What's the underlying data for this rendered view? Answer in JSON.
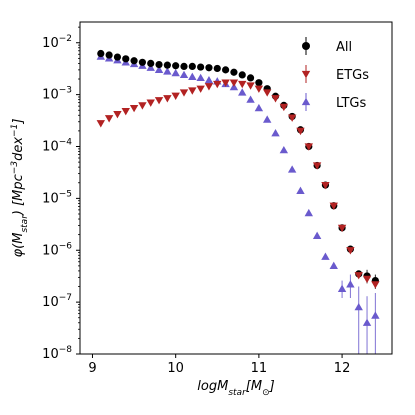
{
  "chart_data": {
    "type": "scatter",
    "xlabel_base": "logM",
    "xlabel_sub": "star",
    "xlabel_unit_open": "[M",
    "xlabel_unit_sub": "⊙",
    "xlabel_unit_close": "]",
    "ylabel_pre": "φ(M",
    "ylabel_sub": "star",
    "ylabel_post": ") [Mpc",
    "ylabel_sup1": "−3",
    "ylabel_mid": "dex",
    "ylabel_sup2": "−1",
    "ylabel_end": "]",
    "xlim": [
      8.85,
      12.6
    ],
    "ylim_log10": [
      -8,
      -1.6
    ],
    "y_scale": "log",
    "legend_position": "top-right",
    "x_ticks": [
      9,
      10,
      11,
      12
    ],
    "y_ticks": [
      {
        "exp": -8,
        "label": "10",
        "sup": "−8"
      },
      {
        "exp": -7,
        "label": "10",
        "sup": "−7"
      },
      {
        "exp": -6,
        "label": "10",
        "sup": "−6"
      },
      {
        "exp": -5,
        "label": "10",
        "sup": "−5"
      },
      {
        "exp": -4,
        "label": "10",
        "sup": "−4"
      },
      {
        "exp": -3,
        "label": "10",
        "sup": "−3"
      },
      {
        "exp": -2,
        "label": "10",
        "sup": "−2"
      }
    ],
    "series": [
      {
        "name": "All",
        "marker": "circle",
        "color": "#000000",
        "points": [
          [
            9.1,
            0.0062
          ],
          [
            9.2,
            0.0058
          ],
          [
            9.3,
            0.0053
          ],
          [
            9.4,
            0.0049
          ],
          [
            9.5,
            0.0045
          ],
          [
            9.6,
            0.0042
          ],
          [
            9.7,
            0.004
          ],
          [
            9.8,
            0.0038
          ],
          [
            9.9,
            0.0037
          ],
          [
            10.0,
            0.0036
          ],
          [
            10.1,
            0.0035
          ],
          [
            10.2,
            0.0035
          ],
          [
            10.3,
            0.0034
          ],
          [
            10.4,
            0.0033
          ],
          [
            10.5,
            0.0032
          ],
          [
            10.6,
            0.003
          ],
          [
            10.7,
            0.0027
          ],
          [
            10.8,
            0.0024
          ],
          [
            10.9,
            0.0021
          ],
          [
            11.0,
            0.0017
          ],
          [
            11.1,
            0.0013
          ],
          [
            11.2,
            0.00093
          ],
          [
            11.3,
            0.00062
          ],
          [
            11.4,
            0.00038
          ],
          [
            11.5,
            0.00021
          ],
          [
            11.6,
            0.0001
          ],
          [
            11.7,
            4.3e-05
          ],
          [
            11.8,
            1.8e-05
          ],
          [
            11.9,
            7.2e-06
          ],
          [
            12.0,
            2.7e-06
          ],
          [
            12.1,
            1.05e-06
          ],
          [
            12.2,
            3.5e-07
          ],
          [
            12.3,
            3.2e-07
          ],
          [
            12.4,
            2.6e-07
          ]
        ]
      },
      {
        "name": "ETGs",
        "marker": "triangle-down",
        "color": "#b22222",
        "points": [
          [
            9.1,
            0.00028
          ],
          [
            9.2,
            0.00035
          ],
          [
            9.3,
            0.00042
          ],
          [
            9.4,
            0.00048
          ],
          [
            9.5,
            0.00055
          ],
          [
            9.6,
            0.00062
          ],
          [
            9.7,
            0.0007
          ],
          [
            9.8,
            0.00078
          ],
          [
            9.9,
            0.00085
          ],
          [
            10.0,
            0.00095
          ],
          [
            10.1,
            0.0011
          ],
          [
            10.2,
            0.0012
          ],
          [
            10.3,
            0.0013
          ],
          [
            10.4,
            0.00145
          ],
          [
            10.5,
            0.0016
          ],
          [
            10.6,
            0.0017
          ],
          [
            10.7,
            0.0017
          ],
          [
            10.8,
            0.0016
          ],
          [
            10.9,
            0.0015
          ],
          [
            11.0,
            0.0013
          ],
          [
            11.1,
            0.0011
          ],
          [
            11.2,
            0.00085
          ],
          [
            11.3,
            0.00058
          ],
          [
            11.4,
            0.00036
          ],
          [
            11.5,
            0.0002
          ],
          [
            11.6,
            0.0001
          ],
          [
            11.7,
            4.3e-05
          ],
          [
            11.8,
            1.8e-05
          ],
          [
            11.9,
            7.2e-06
          ],
          [
            12.0,
            2.7e-06
          ],
          [
            12.1,
            1e-06
          ],
          [
            12.2,
            3.3e-07
          ],
          [
            12.3,
            2.8e-07
          ],
          [
            12.4,
            2.2e-07
          ]
        ]
      },
      {
        "name": "LTGs",
        "marker": "triangle-up",
        "color": "#6a5acd",
        "points": [
          [
            9.1,
            0.0054
          ],
          [
            9.2,
            0.005
          ],
          [
            9.3,
            0.0046
          ],
          [
            9.4,
            0.0042
          ],
          [
            9.5,
            0.0039
          ],
          [
            9.6,
            0.0036
          ],
          [
            9.7,
            0.0033
          ],
          [
            9.8,
            0.003
          ],
          [
            9.9,
            0.0028
          ],
          [
            10.0,
            0.0026
          ],
          [
            10.1,
            0.0024
          ],
          [
            10.2,
            0.0022
          ],
          [
            10.3,
            0.0021
          ],
          [
            10.4,
            0.0019
          ],
          [
            10.5,
            0.0018
          ],
          [
            10.6,
            0.0016
          ],
          [
            10.7,
            0.0014
          ],
          [
            10.8,
            0.0011
          ],
          [
            10.9,
            0.0008
          ],
          [
            11.0,
            0.00055
          ],
          [
            11.1,
            0.00033
          ],
          [
            11.2,
            0.00018
          ],
          [
            11.3,
            8.5e-05
          ],
          [
            11.4,
            3.6e-05
          ],
          [
            11.5,
            1.4e-05
          ],
          [
            11.6,
            5.2e-06
          ],
          [
            11.7,
            1.9e-06
          ],
          [
            11.8,
            7.5e-07
          ],
          [
            11.9,
            5e-07
          ],
          [
            12.0,
            1.8e-07
          ],
          [
            12.1,
            2.2e-07
          ],
          [
            12.2,
            8e-08
          ],
          [
            12.3,
            4e-08
          ],
          [
            12.4,
            5.5e-08
          ]
        ]
      }
    ],
    "error_bars": [
      {
        "series": "LTGs",
        "x": 12.0,
        "lo": 1.2e-07,
        "hi": 2.6e-07
      },
      {
        "series": "LTGs",
        "x": 12.1,
        "lo": 1.2e-07,
        "hi": 3.4e-07
      },
      {
        "series": "LTGs",
        "x": 12.2,
        "lo": 1e-08,
        "hi": 2e-07
      },
      {
        "series": "LTGs",
        "x": 12.3,
        "lo": 1e-08,
        "hi": 1.3e-07
      },
      {
        "series": "LTGs",
        "x": 12.4,
        "lo": 1e-08,
        "hi": 1.5e-07
      },
      {
        "series": "All",
        "x": 12.3,
        "lo": 2.3e-07,
        "hi": 4.2e-07
      },
      {
        "series": "All",
        "x": 12.4,
        "lo": 1.8e-07,
        "hi": 3.4e-07
      }
    ],
    "legend": [
      "All",
      "ETGs",
      "LTGs"
    ]
  }
}
